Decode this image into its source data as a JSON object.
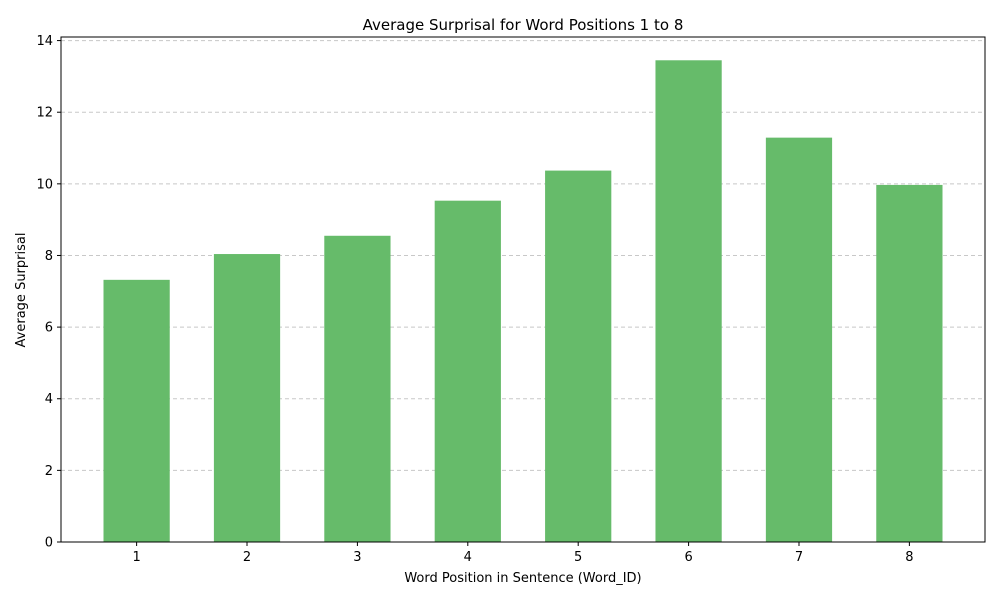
{
  "chart_data": {
    "type": "bar",
    "title": "Average Surprisal for Word Positions 1 to 8",
    "xlabel": "Word Position in Sentence (Word_ID)",
    "ylabel": "Average Surprisal",
    "categories": [
      "1",
      "2",
      "3",
      "4",
      "5",
      "6",
      "7",
      "8"
    ],
    "values": [
      7.32,
      8.04,
      8.55,
      9.53,
      10.37,
      13.45,
      11.29,
      9.97
    ],
    "ylim": [
      0,
      14.1
    ],
    "yticks": [
      0,
      2,
      4,
      6,
      8,
      10,
      12,
      14
    ],
    "grid": "y-dashed",
    "legend": "none",
    "bar_color": "#66bb6a"
  }
}
